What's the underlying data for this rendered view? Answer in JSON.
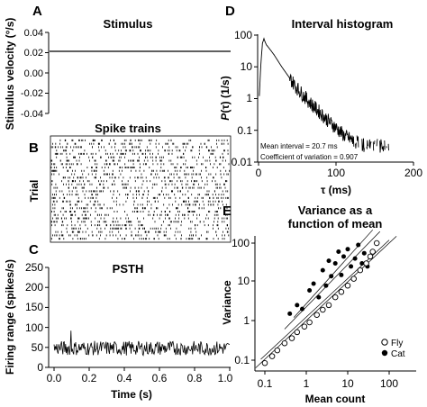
{
  "colors": {
    "ink": "#000000",
    "background": "#ffffff",
    "open_marker": "#ffffff"
  },
  "chart_data": [
    {
      "panel": "A",
      "type": "line",
      "title": "Stimulus",
      "ylabel": "Stimulus velocity (°/s)",
      "ylim": [
        -0.04,
        0.04
      ],
      "yticks": [
        "0.04",
        "0.02",
        "0.00",
        "-0.02",
        "-0.04"
      ],
      "series": [
        {
          "x": [
            0,
            1.0
          ],
          "y": [
            0.021,
            0.021
          ]
        }
      ]
    },
    {
      "panel": "B",
      "type": "scatter",
      "title": "Spike trains",
      "ylabel": "Trial",
      "trials": 30,
      "xlim": [
        0,
        1.0
      ],
      "mean_rate_spikes_per_s": 48
    },
    {
      "panel": "C",
      "type": "line",
      "title": "PSTH",
      "xlabel": "Time (s)",
      "ylabel": "Firing range (spikes/s)",
      "xlim": [
        0,
        1.0
      ],
      "ylim": [
        0,
        250
      ],
      "xticks": [
        "0.0",
        "0.2",
        "0.4",
        "0.6",
        "0.8",
        "1.0"
      ],
      "yticks": [
        "250",
        "200",
        "150",
        "100",
        "50",
        "0"
      ],
      "series": [
        {
          "mean": 48,
          "min": 25,
          "max": 92
        }
      ]
    },
    {
      "panel": "D",
      "type": "line",
      "title": "Interval histogram",
      "xlabel": "τ (ms)",
      "ylabel": "P(τ) (1/s)",
      "xlim": [
        0,
        200
      ],
      "ylim": [
        0.01,
        100
      ],
      "yscale": "log",
      "xticks": [
        "0",
        "100",
        "200"
      ],
      "yticks": [
        "100",
        "10",
        "1",
        "0.1",
        "0.01"
      ],
      "annotations": [
        "Mean interval = 20.7 ms",
        "Coefficient of variation = 0.907"
      ],
      "series": [
        {
          "x": [
            1,
            3,
            5,
            7,
            8,
            10,
            15,
            20,
            30,
            40,
            50,
            60,
            70,
            80,
            90,
            100,
            110,
            120,
            130,
            140,
            150,
            160,
            170
          ],
          "y": [
            1.2,
            12,
            55,
            78,
            65,
            50,
            35,
            24,
            10,
            4.5,
            2.1,
            1.1,
            0.6,
            0.35,
            0.2,
            0.12,
            0.07,
            0.05,
            0.04,
            0.03,
            0.035,
            0.03,
            0.03
          ]
        }
      ]
    },
    {
      "panel": "E",
      "type": "scatter",
      "title": "Variance as a function of mean",
      "xlabel": "Mean count",
      "ylabel": "Variance",
      "xscale": "log",
      "yscale": "log",
      "xticks": [
        "0.1",
        "1",
        "10",
        "100"
      ],
      "yticks": [
        "100",
        "10",
        "1",
        "0.1"
      ],
      "legend_position": "bottom-right",
      "series": [
        {
          "name": "Fly",
          "marker": "open-circle",
          "x": [
            0.1,
            0.15,
            0.2,
            0.3,
            0.45,
            0.6,
            0.9,
            1.2,
            1.8,
            2.5,
            3.5,
            5,
            7,
            10,
            14,
            20,
            28,
            35,
            40,
            50
          ],
          "y": [
            0.08,
            0.12,
            0.17,
            0.26,
            0.35,
            0.5,
            0.7,
            0.9,
            1.4,
            1.9,
            2.5,
            4,
            5.5,
            8,
            12,
            20,
            30,
            45,
            60,
            100
          ]
        },
        {
          "name": "Cat",
          "marker": "filled-circle",
          "x": [
            0.4,
            0.6,
            0.8,
            1.2,
            1.5,
            2,
            2.5,
            3,
            3.5,
            4,
            5,
            6,
            7,
            8,
            10,
            12,
            15,
            18,
            22,
            25,
            30
          ],
          "y": [
            1.5,
            2.5,
            2,
            6,
            9,
            4,
            20,
            8,
            35,
            14,
            30,
            60,
            15,
            45,
            70,
            25,
            40,
            90,
            30,
            55,
            25
          ]
        }
      ]
    }
  ],
  "panels": {
    "a": {
      "letter": "A",
      "title": "Stimulus",
      "ylabel": "Stimulus velocity (°/s)",
      "yticks": [
        "0.04",
        "0.02",
        "0.00",
        "-0.02",
        "-0.04"
      ]
    },
    "b": {
      "letter": "B",
      "title": "Spike trains",
      "ylabel": "Trial"
    },
    "c": {
      "letter": "C",
      "title": "PSTH",
      "ylabel": "Firing range (spikes/s)",
      "xlabel": "Time (s)",
      "yticks": [
        "250",
        "200",
        "150",
        "100",
        "50",
        "0"
      ],
      "xticks": [
        "0.0",
        "0.2",
        "0.4",
        "0.6",
        "0.8",
        "1.0"
      ]
    },
    "d": {
      "letter": "D",
      "title": "Interval histogram",
      "xlabel": "τ (ms)",
      "ylabel_main": "P",
      "ylabel_arg": "(τ)",
      "ylabel_unit": " (1/s)",
      "yticks": [
        "100",
        "10",
        "1",
        "0.1",
        "0.01"
      ],
      "xticks": [
        "0",
        "100",
        "200"
      ],
      "annotation_1": "Mean interval = 20.7 ms",
      "annotation_2": "Coefficient of variation = 0.907"
    },
    "e": {
      "letter": "E",
      "title_line1": "Variance as a",
      "title_line2": "function of mean",
      "xlabel": "Mean count",
      "ylabel": "Variance",
      "yticks": [
        "100",
        "10",
        "1",
        "0.1"
      ],
      "xticks": [
        "0.1",
        "1",
        "10",
        "100"
      ],
      "legend_fly": "Fly",
      "legend_cat": "Cat"
    }
  }
}
